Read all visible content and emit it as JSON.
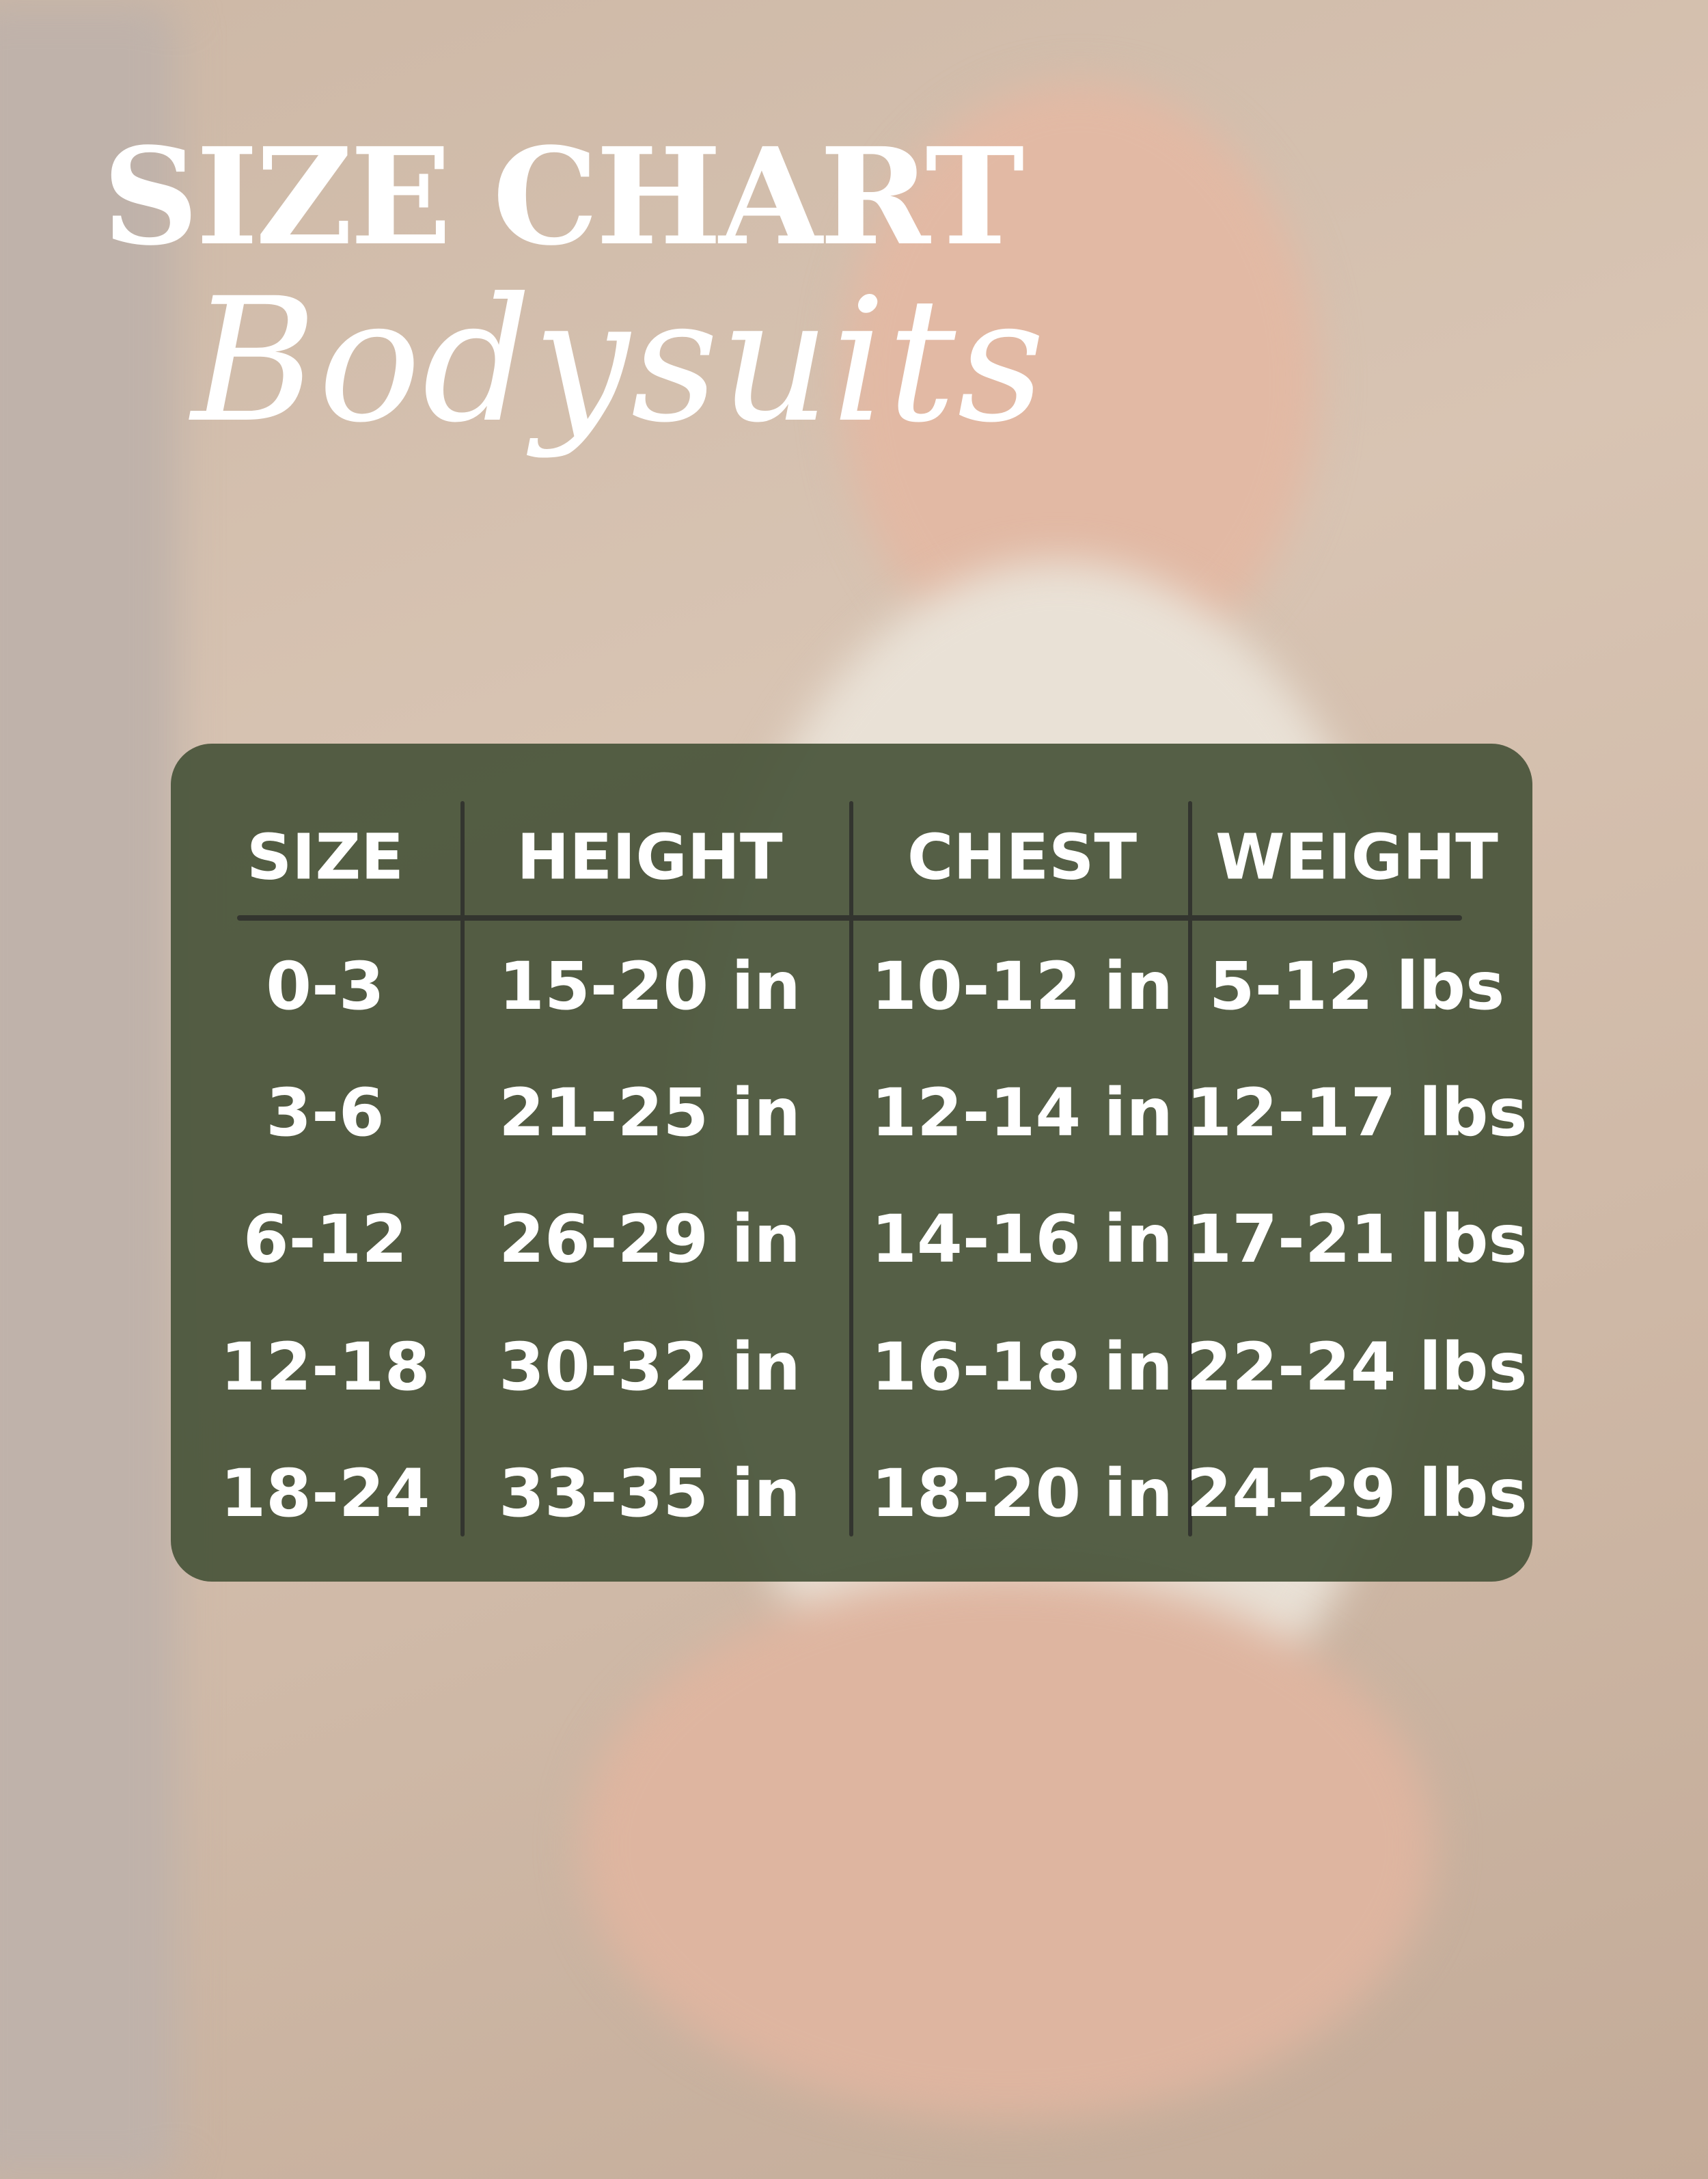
{
  "title": "SIZE CHART",
  "subtitle": "Bodysuits",
  "table": {
    "headers": [
      "SIZE",
      "HEIGHT",
      "CHEST",
      "WEIGHT"
    ],
    "rows": [
      [
        "0-3",
        "15-20 in",
        "10-12 in",
        "5-12 lbs"
      ],
      [
        "3-6",
        "21-25 in",
        "12-14 in",
        "12-17 lbs"
      ],
      [
        "6-12",
        "26-29 in",
        "14-16 in",
        "17-21 lbs"
      ],
      [
        "12-18",
        "30-32 in",
        "16-18 in",
        "22-24 lbs"
      ],
      [
        "18-24",
        "33-35 in",
        "18-20 in",
        "24-29 lbs"
      ]
    ]
  },
  "colors": {
    "panel": "#48543a",
    "text": "#ffffff",
    "divider": "#33352f"
  }
}
